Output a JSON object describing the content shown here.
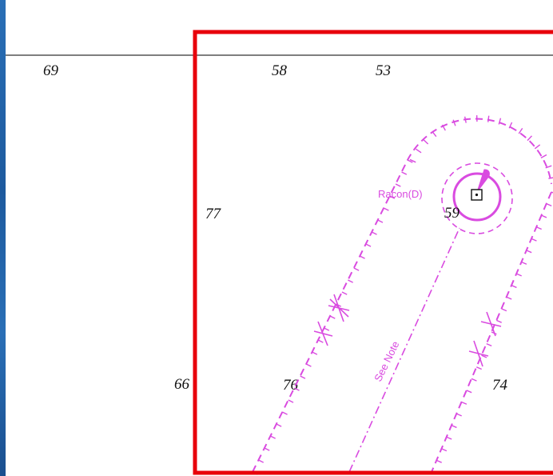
{
  "colors": {
    "chart_magenta": "#d94be0",
    "highlight_red": "#e8000b",
    "sounding_ink": "#111111",
    "left_band_blue": "#2a6fb6"
  },
  "soundings": {
    "s69": "69",
    "s58": "58",
    "s53": "53",
    "s77": "77",
    "s59": "59",
    "s66": "66",
    "s76": "76",
    "s74": "74"
  },
  "labels": {
    "racon": "Racon(D)",
    "see_note": "See Note"
  },
  "icons": {
    "buoy_symbol": "square-dot-icon",
    "light_flare": "light-flare-icon",
    "wreck_marks": "wreck-icon"
  }
}
